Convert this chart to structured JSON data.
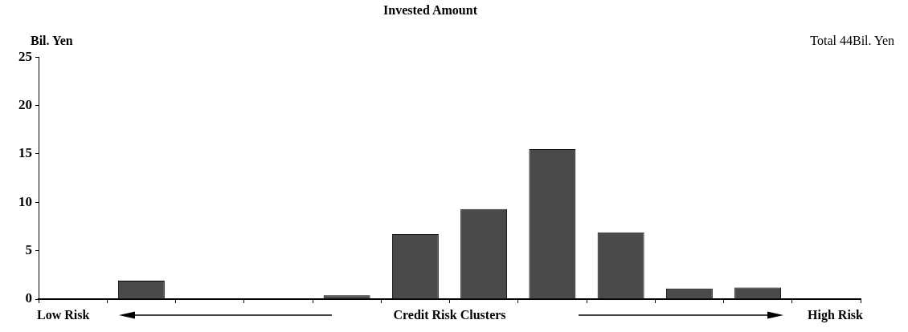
{
  "chart_data": {
    "type": "bar",
    "title": "Invested Amount",
    "ylabel": "Bil. Yen",
    "xlabel": "Credit Risk Clusters",
    "annotations": [
      "Total 44Bil. Yen",
      "Low Risk",
      "High Risk"
    ],
    "categories": [
      null,
      null,
      null,
      null,
      null,
      null,
      null,
      null,
      null,
      null,
      null,
      null
    ],
    "values": [
      0,
      1.9,
      0,
      0,
      0.4,
      6.7,
      9.3,
      15.5,
      6.9,
      1.1,
      1.2,
      0
    ],
    "color": "#4a4a4a",
    "ylim": [
      0,
      25
    ],
    "yticks": [
      0,
      5,
      10,
      15,
      20,
      25
    ],
    "grid": false,
    "legend": false
  }
}
